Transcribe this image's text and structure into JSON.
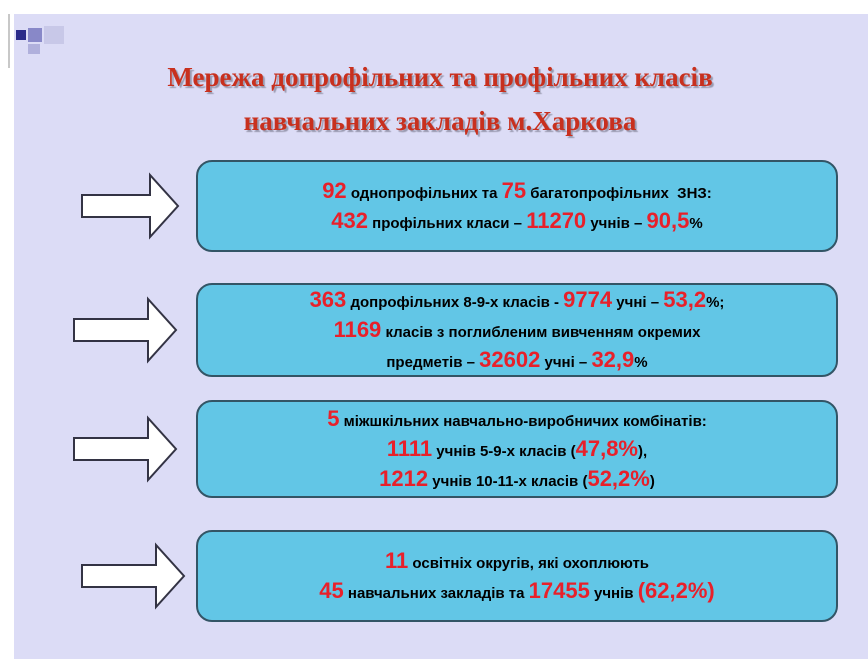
{
  "title": {
    "lines": [
      "Мережа допрофільних та  профільних класів",
      "навчальних закладів м.Харкова"
    ]
  },
  "boxes": [
    {
      "lines": [
        [
          {
            "text": "92",
            "color": "#e8202a"
          },
          {
            "text": " однопрофільних та ",
            "color": "#000000"
          },
          {
            "text": "75",
            "color": "#e8202a"
          },
          {
            "text": " багатопрофільних  ЗНЗ:",
            "color": "#000000"
          }
        ],
        [
          {
            "text": "432",
            "color": "#e8202a"
          },
          {
            "text": " профільних класи – ",
            "color": "#000000"
          },
          {
            "text": "11270",
            "color": "#e8202a"
          },
          {
            "text": " учнів – ",
            "color": "#000000"
          },
          {
            "text": "90,5",
            "color": "#e8202a"
          },
          {
            "text": "%",
            "color": "#000000"
          }
        ]
      ]
    },
    {
      "lines": [
        [
          {
            "text": "363",
            "color": "#e8202a"
          },
          {
            "text": " допрофільних 8-9-х класів - ",
            "color": "#000000"
          },
          {
            "text": "9774",
            "color": "#e8202a"
          },
          {
            "text": " учні – ",
            "color": "#000000"
          },
          {
            "text": "53,2",
            "color": "#e8202a"
          },
          {
            "text": "%;",
            "color": "#000000"
          }
        ],
        [
          {
            "text": "1169",
            "color": "#e8202a"
          },
          {
            "text": " класів з поглибленим вивченням окремих",
            "color": "#000000"
          }
        ],
        [
          {
            "text": "предметів – ",
            "color": "#000000"
          },
          {
            "text": "32602",
            "color": "#e8202a"
          },
          {
            "text": " учні – ",
            "color": "#000000"
          },
          {
            "text": "32,9",
            "color": "#e8202a"
          },
          {
            "text": "%",
            "color": "#000000"
          }
        ]
      ]
    },
    {
      "lines": [
        [
          {
            "text": "5",
            "color": "#e8202a"
          },
          {
            "text": " міжшкільних навчально-виробничих комбінатів:",
            "color": "#000000"
          }
        ],
        [
          {
            "text": "1111",
            "color": "#e8202a"
          },
          {
            "text": " учнів 5-9-х класів (",
            "color": "#000000"
          },
          {
            "text": "47,8%",
            "color": "#e8202a"
          },
          {
            "text": "),",
            "color": "#000000"
          }
        ],
        [
          {
            "text": "1212",
            "color": "#e8202a"
          },
          {
            "text": " учнів 10-11-х класів (",
            "color": "#000000"
          },
          {
            "text": "52,2%",
            "color": "#e8202a"
          },
          {
            "text": ")",
            "color": "#000000"
          }
        ]
      ]
    },
    {
      "lines": [
        [
          {
            "text": "11",
            "color": "#e8202a"
          },
          {
            "text": " освітніх округів, які охоплюють",
            "color": "#000000"
          }
        ],
        [
          {
            "text": "45",
            "color": "#e8202a"
          },
          {
            "text": " навчальних закладів та ",
            "color": "#000000"
          },
          {
            "text": "17455",
            "color": "#e8202a"
          },
          {
            "text": " учнів ",
            "color": "#000000"
          },
          {
            "text": "(62,2%)",
            "color": "#e8202a"
          }
        ]
      ]
    }
  ]
}
